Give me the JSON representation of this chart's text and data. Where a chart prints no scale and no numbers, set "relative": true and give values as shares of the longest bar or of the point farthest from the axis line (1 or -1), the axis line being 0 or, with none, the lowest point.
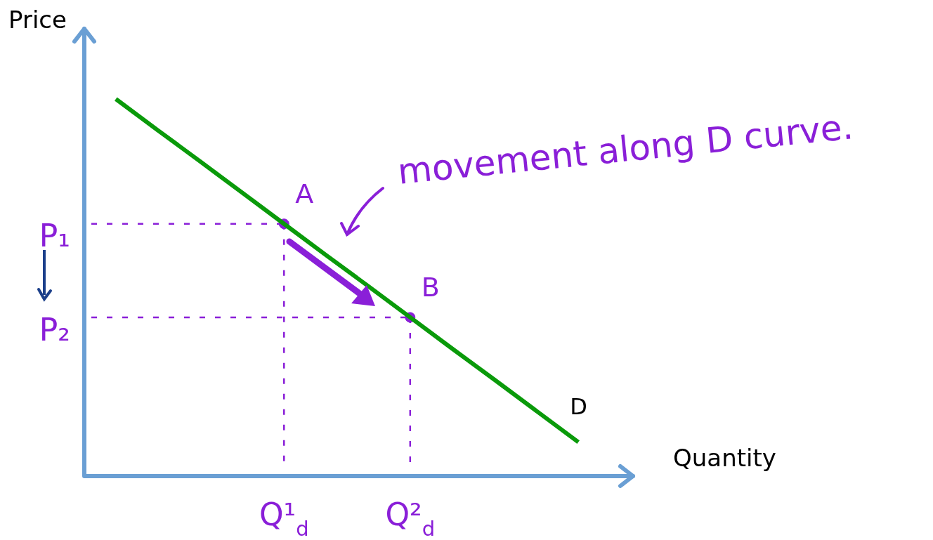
{
  "chart_data": {
    "type": "line",
    "relative": true,
    "xlabel": "Quantity",
    "ylabel": "Price",
    "legend": false,
    "categories": [
      null,
      null,
      null,
      null,
      "Q¹$_{d}$",
      null,
      null,
      "Q²$_{d}$",
      null,
      null,
      null,
      null
    ],
    "series": [
      {
        "type": "line",
        "name": "D",
        "color": "#0a9a0a",
        "values": [
          1,
          0.917,
          0.835,
          0.752,
          0.669,
          0.586,
          0.504,
          0.421,
          0.338,
          0.256,
          0.173,
          0.09
        ]
      },
      {
        "type": "scatter",
        "color": "#8a1fd8",
        "marker": "circle",
        "x": [
          "Q¹$_{d}$",
          "Q²$_{d}$"
        ],
        "values": [
          0.669,
          0.421
        ]
      }
    ],
    "annotations": [
      {
        "text": "A",
        "x": "Q¹$_{d}$",
        "y": 0.669
      },
      {
        "text": "B",
        "x": "Q²$_{d}$",
        "y": 0.421
      },
      "movement along D curve.",
      "P₁",
      "P₂"
    ]
  }
}
